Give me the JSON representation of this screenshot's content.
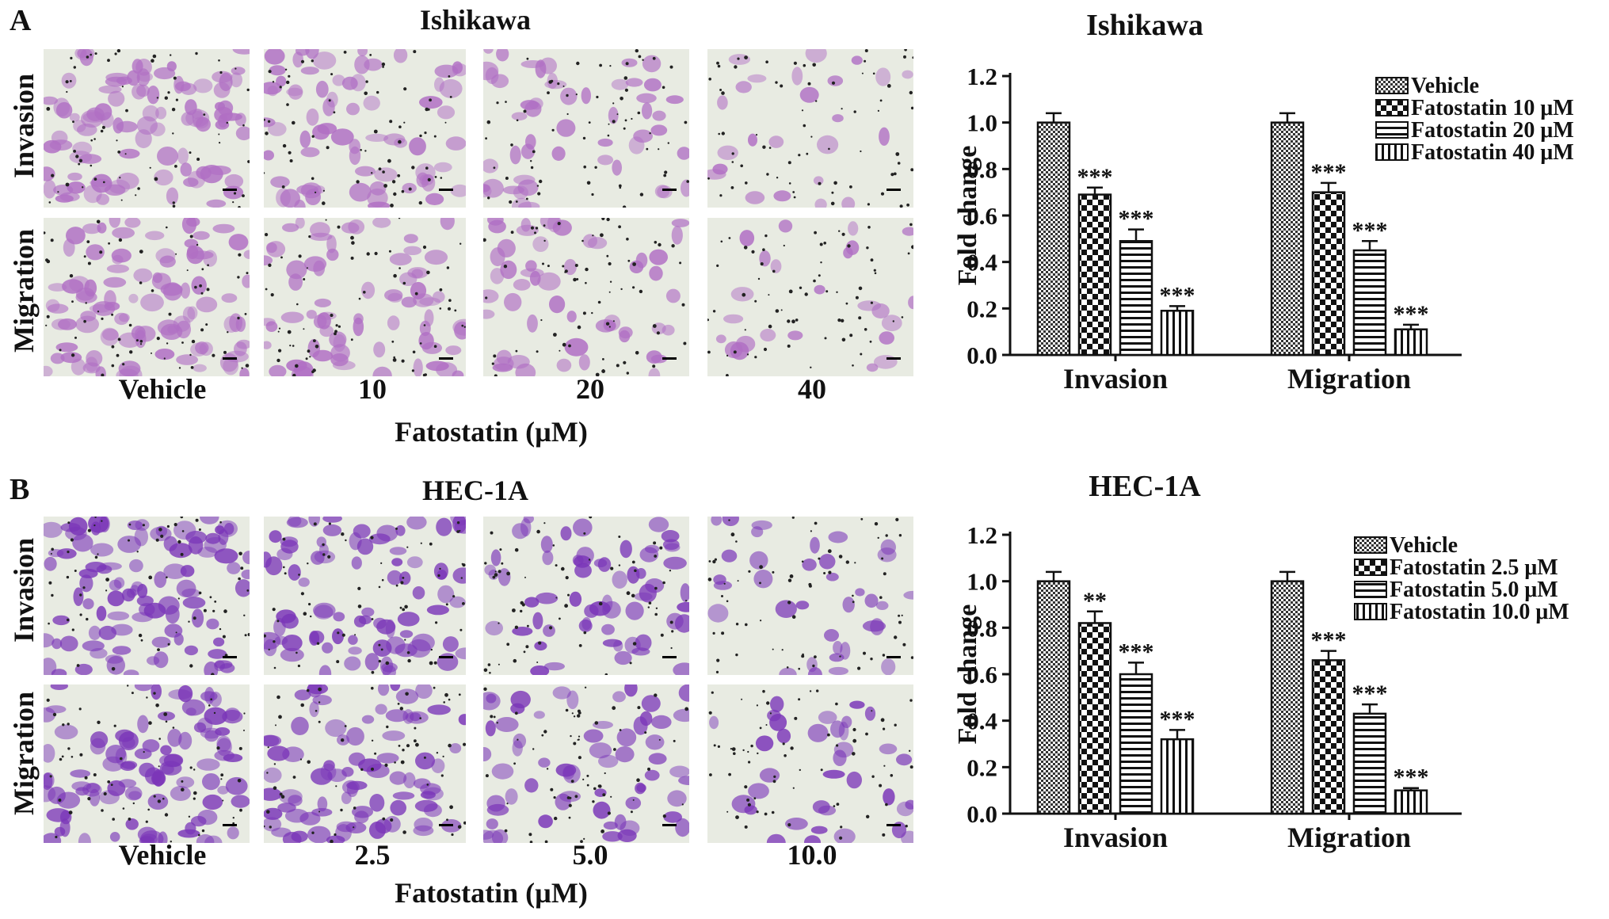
{
  "figure": {
    "panel_labels": [
      "A",
      "B"
    ],
    "panels": [
      {
        "cell_line": "Ishikawa",
        "row_labels": [
          "Invasion",
          "Migration"
        ],
        "conditions": [
          "Vehicle",
          "10",
          "20",
          "40"
        ],
        "xaxis_caption": "Fatostatin (µM)",
        "stain_color": "#b06fc4",
        "cell_density": [
          1.0,
          0.7,
          0.5,
          0.2
        ]
      },
      {
        "cell_line": "HEC-1A",
        "row_labels": [
          "Invasion",
          "Migration"
        ],
        "conditions": [
          "Vehicle",
          "2.5",
          "5.0",
          "10.0"
        ],
        "xaxis_caption": "Fatostatin (µM)",
        "stain_color": "#7a35b8",
        "cell_density": [
          1.0,
          0.82,
          0.6,
          0.32
        ]
      }
    ]
  },
  "chart_data": [
    {
      "type": "bar",
      "title": "Ishikawa",
      "ylabel": "Fold change",
      "xlabel": "",
      "ylim": [
        0,
        1.2
      ],
      "yticks": [
        "0.0",
        "0.2",
        "0.4",
        "0.6",
        "0.8",
        "1.0",
        "1.2"
      ],
      "categories": [
        "Invasion",
        "Migration"
      ],
      "legend_position": "top-right",
      "series": [
        {
          "name": "Vehicle",
          "pattern": "dense-check",
          "values": [
            1.0,
            1.0
          ],
          "errors": [
            0.04,
            0.04
          ],
          "significance": [
            "",
            ""
          ]
        },
        {
          "name": "Fatostatin 10 μM",
          "pattern": "checker",
          "values": [
            0.69,
            0.7
          ],
          "errors": [
            0.03,
            0.04
          ],
          "significance": [
            "***",
            "***"
          ]
        },
        {
          "name": "Fatostatin 20 μM",
          "pattern": "horizontal-lines",
          "values": [
            0.49,
            0.45
          ],
          "errors": [
            0.05,
            0.04
          ],
          "significance": [
            "***",
            "***"
          ]
        },
        {
          "name": "Fatostatin 40 μM",
          "pattern": "vertical-lines",
          "values": [
            0.19,
            0.11
          ],
          "errors": [
            0.02,
            0.02
          ],
          "significance": [
            "***",
            "***"
          ]
        }
      ]
    },
    {
      "type": "bar",
      "title": "HEC-1A",
      "ylabel": "Fold change",
      "xlabel": "",
      "ylim": [
        0,
        1.2
      ],
      "yticks": [
        "0.0",
        "0.2",
        "0.4",
        "0.6",
        "0.8",
        "1.0",
        "1.2"
      ],
      "categories": [
        "Invasion",
        "Migration"
      ],
      "legend_position": "top-right",
      "series": [
        {
          "name": "Vehicle",
          "pattern": "dense-check",
          "values": [
            1.0,
            1.0
          ],
          "errors": [
            0.04,
            0.04
          ],
          "significance": [
            "",
            ""
          ]
        },
        {
          "name": "Fatostatin 2.5 μM",
          "pattern": "checker",
          "values": [
            0.82,
            0.66
          ],
          "errors": [
            0.05,
            0.04
          ],
          "significance": [
            "**",
            "***"
          ]
        },
        {
          "name": "Fatostatin 5.0 μM",
          "pattern": "horizontal-lines",
          "values": [
            0.6,
            0.43
          ],
          "errors": [
            0.05,
            0.04
          ],
          "significance": [
            "***",
            "***"
          ]
        },
        {
          "name": "Fatostatin 10.0 μM",
          "pattern": "vertical-lines",
          "values": [
            0.32,
            0.1
          ],
          "errors": [
            0.04,
            0.01
          ],
          "significance": [
            "***",
            "***"
          ]
        }
      ]
    }
  ]
}
